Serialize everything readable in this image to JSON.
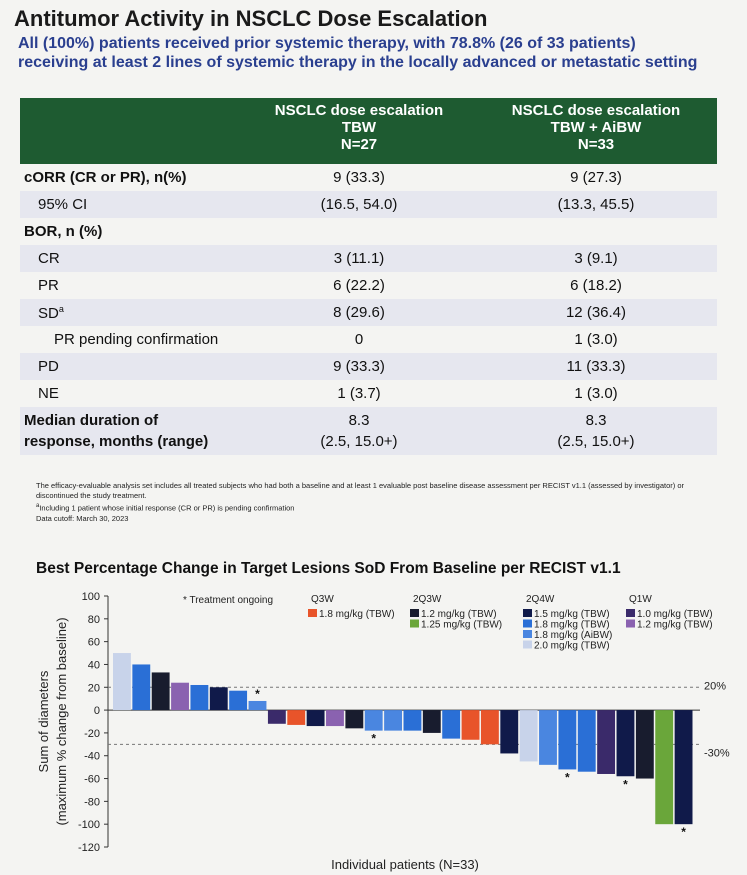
{
  "title": "Antitumor Activity in NSCLC Dose Escalation",
  "subtitle": "All (100%) patients received prior systemic therapy, with 78.8% (26 of 33 patients) receiving at least 2 lines of systemic therapy in the locally advanced or metastatic setting",
  "table": {
    "headers": [
      {
        "l1": "",
        "l2": "",
        "l3": ""
      },
      {
        "l1": "NSCLC dose escalation",
        "l2": "TBW",
        "l3": "N=27"
      },
      {
        "l1": "NSCLC dose escalation",
        "l2": "TBW + AiBW",
        "l3": "N=33"
      }
    ],
    "rows": [
      {
        "label": "cORR (CR or PR), n(%)",
        "tbw": "9 (33.3)",
        "aibw": "9 (27.3)"
      },
      {
        "label": "95% CI",
        "tbw": "(16.5, 54.0)",
        "aibw": "(13.3, 45.5)"
      },
      {
        "label": "BOR, n (%)",
        "tbw": "",
        "aibw": ""
      },
      {
        "label": "CR",
        "tbw": "3 (11.1)",
        "aibw": "3 (9.1)"
      },
      {
        "label": "PR",
        "tbw": "6 (22.2)",
        "aibw": "6 (18.2)"
      },
      {
        "label": "SD",
        "sup": "a",
        "tbw": "8 (29.6)",
        "aibw": "12 (36.4)"
      },
      {
        "label": "PR pending confirmation",
        "tbw": "0",
        "aibw": "1 (3.0)"
      },
      {
        "label": "PD",
        "tbw": "9 (33.3)",
        "aibw": "11 (33.3)"
      },
      {
        "label": "NE",
        "tbw": "1 (3.7)",
        "aibw": "1 (3.0)"
      }
    ],
    "median": {
      "label1": "Median duration of",
      "label2": "response, months (range)",
      "tbw1": "8.3",
      "tbw2": "(2.5, 15.0+)",
      "aibw1": "8.3",
      "aibw2": "(2.5, 15.0+)"
    }
  },
  "footnotes": {
    "n1": "The efficacy-evaluable analysis set includes all treated subjects who had both a baseline and at least 1 evaluable post baseline disease assessment per RECIST v1.1 (assessed by investigator) or discontinued the study treatment.",
    "n2": "Including 1 patient whose initial response (CR or PR) is pending confirmation",
    "n2_sup": "a",
    "n3": "Data cutoff: March 30, 2023"
  },
  "chart_data": {
    "type": "bar",
    "title": "Best Percentage Change in Target Lesions SoD From Baseline per RECIST v1.1",
    "ylabel_line1": "Sum of diameters",
    "ylabel_line2": "(maximum % change from baseline)",
    "xlabel": "Individual patients (N=33)",
    "ylim": [
      -120,
      100
    ],
    "yticks": [
      100,
      80,
      60,
      40,
      20,
      0,
      -20,
      -40,
      -60,
      -80,
      -100,
      -120
    ],
    "reference_lines": [
      {
        "value": 20,
        "label": "20%"
      },
      {
        "value": -30,
        "label": "-30%"
      }
    ],
    "ongoing_note": "Treatment ongoing",
    "ongoing_marker": "*",
    "schedules": [
      "Q3W",
      "2Q3W",
      "2Q4W",
      "Q1W"
    ],
    "cohorts": [
      {
        "id": "q3w_18",
        "schedule": "Q3W",
        "name": "1.8 mg/kg (TBW)",
        "color": "#e8542a"
      },
      {
        "id": "2q3w_12",
        "schedule": "2Q3W",
        "name": "1.2 mg/kg (TBW)",
        "color": "#181c2e"
      },
      {
        "id": "2q3w_125",
        "schedule": "2Q3W",
        "name": "1.25 mg/kg (TBW)",
        "color": "#6aa63a"
      },
      {
        "id": "2q4w_15",
        "schedule": "2Q4W",
        "name": "1.5 mg/kg (TBW)",
        "color": "#101a4a"
      },
      {
        "id": "2q4w_18",
        "schedule": "2Q4W",
        "name": "1.8 mg/kg (TBW)",
        "color": "#2a6fd6"
      },
      {
        "id": "2q4w_18a",
        "schedule": "2Q4W",
        "name": "1.8 mg/kg (AiBW)",
        "color": "#4a86e0"
      },
      {
        "id": "2q4w_20",
        "schedule": "2Q4W",
        "name": "2.0 mg/kg (TBW)",
        "color": "#c8d3ea"
      },
      {
        "id": "q1w_10",
        "schedule": "Q1W",
        "name": "1.0 mg/kg (TBW)",
        "color": "#3a2a6a"
      },
      {
        "id": "q1w_12",
        "schedule": "Q1W",
        "name": "1.2 mg/kg (TBW)",
        "color": "#8a62b0"
      }
    ],
    "bars": [
      {
        "value": 50,
        "cohort": "2q4w_20",
        "ongoing": false
      },
      {
        "value": 40,
        "cohort": "2q4w_18",
        "ongoing": false
      },
      {
        "value": 33,
        "cohort": "2q3w_12",
        "ongoing": false
      },
      {
        "value": 24,
        "cohort": "q1w_12",
        "ongoing": false
      },
      {
        "value": 22,
        "cohort": "2q4w_18",
        "ongoing": false
      },
      {
        "value": 20,
        "cohort": "2q4w_15",
        "ongoing": false
      },
      {
        "value": 17,
        "cohort": "2q4w_18",
        "ongoing": false
      },
      {
        "value": 8,
        "cohort": "2q4w_18a",
        "ongoing": true
      },
      {
        "value": -12,
        "cohort": "q1w_10",
        "ongoing": false
      },
      {
        "value": -13,
        "cohort": "q3w_18",
        "ongoing": false
      },
      {
        "value": -14,
        "cohort": "2q4w_15",
        "ongoing": false
      },
      {
        "value": -14,
        "cohort": "q1w_12",
        "ongoing": false
      },
      {
        "value": -16,
        "cohort": "2q3w_12",
        "ongoing": false
      },
      {
        "value": -18,
        "cohort": "2q4w_18a",
        "ongoing": true
      },
      {
        "value": -18,
        "cohort": "2q4w_18a",
        "ongoing": false
      },
      {
        "value": -18,
        "cohort": "2q4w_18",
        "ongoing": false
      },
      {
        "value": -20,
        "cohort": "2q3w_12",
        "ongoing": false
      },
      {
        "value": -25,
        "cohort": "2q4w_18",
        "ongoing": false
      },
      {
        "value": -26,
        "cohort": "q3w_18",
        "ongoing": false
      },
      {
        "value": -30,
        "cohort": "q3w_18",
        "ongoing": false
      },
      {
        "value": -38,
        "cohort": "2q4w_15",
        "ongoing": false
      },
      {
        "value": -45,
        "cohort": "2q4w_20",
        "ongoing": false
      },
      {
        "value": -48,
        "cohort": "2q4w_18a",
        "ongoing": false
      },
      {
        "value": -52,
        "cohort": "2q4w_18",
        "ongoing": true
      },
      {
        "value": -54,
        "cohort": "2q4w_18",
        "ongoing": false
      },
      {
        "value": -56,
        "cohort": "q1w_10",
        "ongoing": false
      },
      {
        "value": -58,
        "cohort": "2q4w_15",
        "ongoing": true
      },
      {
        "value": -60,
        "cohort": "2q3w_12",
        "ongoing": false
      },
      {
        "value": -100,
        "cohort": "2q3w_125",
        "ongoing": false
      },
      {
        "value": -100,
        "cohort": "2q4w_15",
        "ongoing": true
      }
    ]
  }
}
